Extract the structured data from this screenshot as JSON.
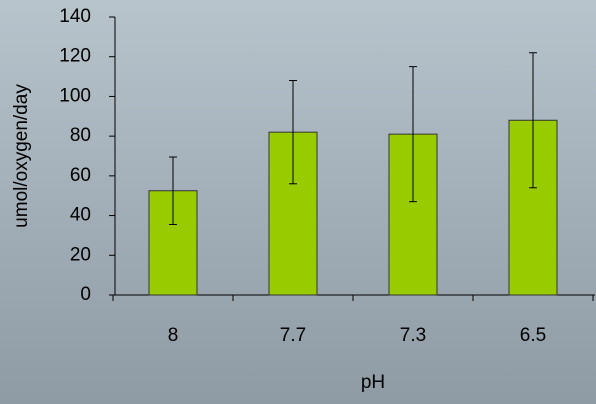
{
  "chart_data": {
    "type": "bar",
    "x_label": "pH",
    "y_label": "umol/oxygen/day",
    "categories": [
      "8",
      "7.7",
      "7.3",
      "6.5"
    ],
    "values": [
      52.5,
      82,
      81,
      88
    ],
    "errors": [
      17,
      26,
      34,
      34
    ],
    "color": "#99cc00",
    "ylim": [
      0,
      140
    ],
    "yticks": [
      0,
      20,
      40,
      60,
      80,
      100,
      120,
      140
    ]
  }
}
